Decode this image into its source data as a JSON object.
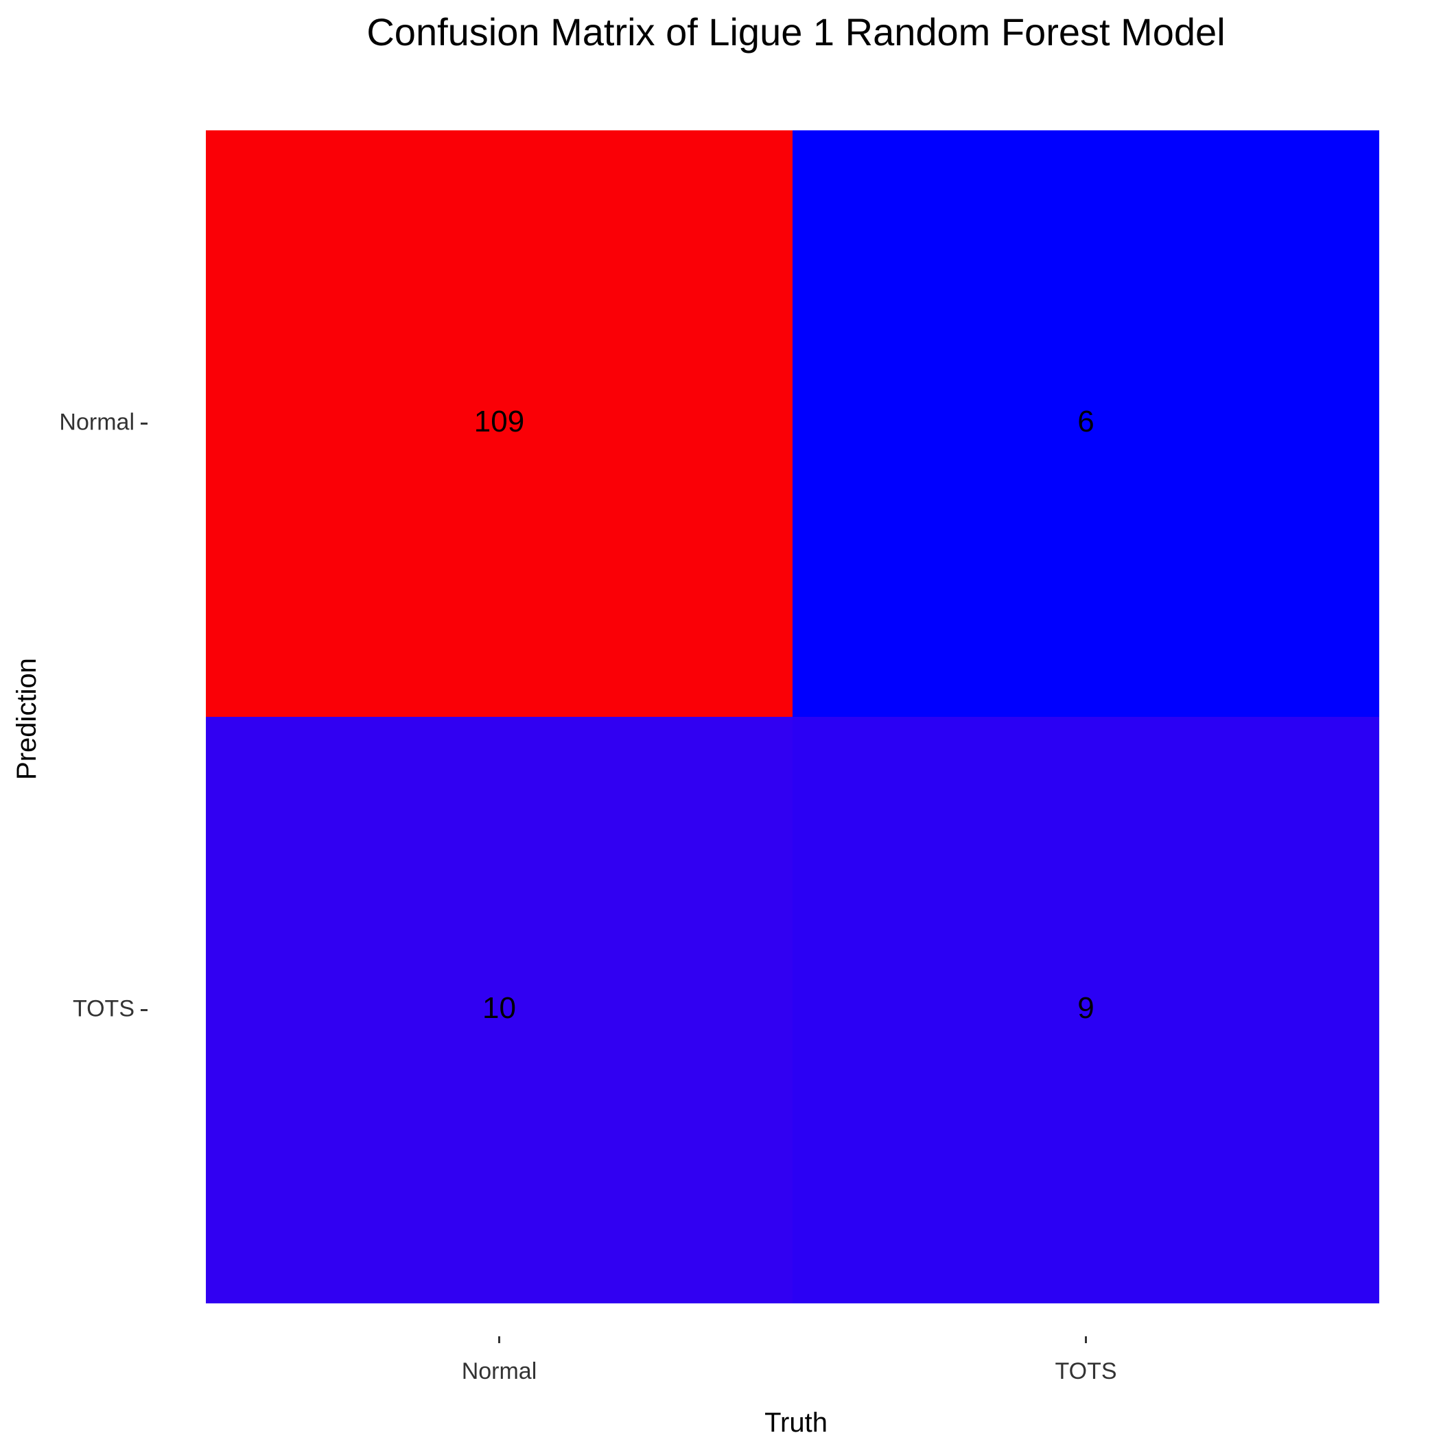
{
  "chart_data": {
    "type": "heatmap",
    "title": "Confusion Matrix of Ligue 1 Random Forest Model",
    "xlabel": "Truth",
    "ylabel": "Prediction",
    "x_categories": [
      "Normal",
      "TOTS"
    ],
    "y_categories": [
      "Normal",
      "TOTS"
    ],
    "cells": [
      {
        "prediction": "Normal",
        "truth": "Normal",
        "value": 109,
        "color": "#fa0006"
      },
      {
        "prediction": "Normal",
        "truth": "TOTS",
        "value": 6,
        "color": "#0000ff"
      },
      {
        "prediction": "TOTS",
        "truth": "Normal",
        "value": 10,
        "color": "#3100f2"
      },
      {
        "prediction": "TOTS",
        "truth": "TOTS",
        "value": 9,
        "color": "#2b00f4"
      }
    ],
    "grid": false
  }
}
